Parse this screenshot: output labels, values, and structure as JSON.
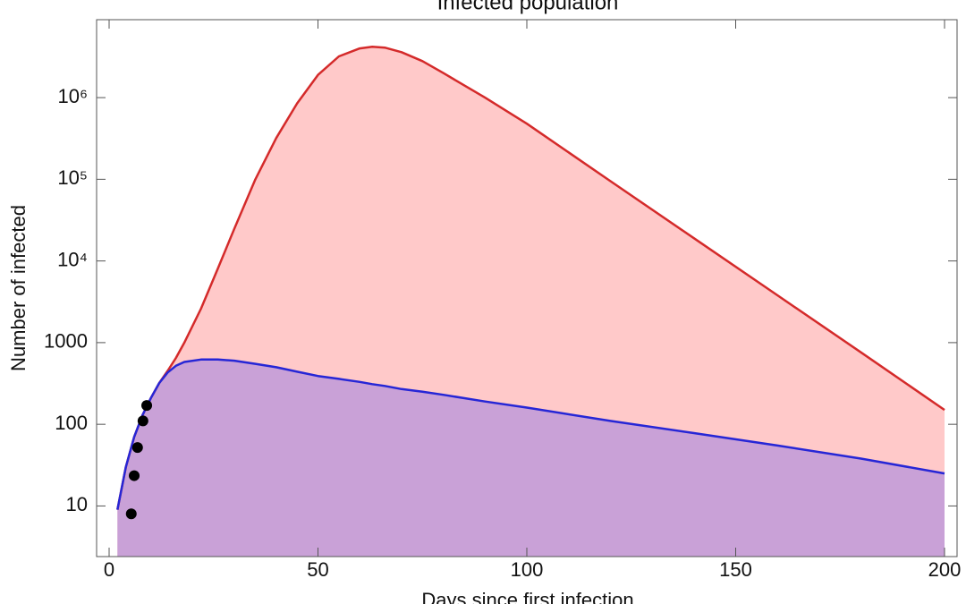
{
  "chart_data": {
    "type": "line",
    "title": "Infected population",
    "x_label": "Days since first infection",
    "y_label": "Number of infected",
    "ylog": true,
    "fill": true,
    "x": [
      2,
      4,
      6,
      8,
      10,
      12,
      14,
      16,
      18,
      22,
      26,
      30,
      35,
      40,
      45,
      50,
      55,
      60,
      63,
      66,
      70,
      75,
      80,
      90,
      100,
      120,
      140,
      160,
      180,
      200
    ],
    "series": [
      {
        "color": "#d42a2a",
        "fill_color": "#ffc9c9",
        "values": [
          9,
          30,
          70,
          130,
          210,
          320,
          450,
          650,
          1000,
          2600,
          8000,
          25000,
          100000,
          320000,
          850000,
          1900000,
          3200000,
          4000000,
          4200000,
          4100000,
          3600000,
          2800000,
          2000000,
          1000000,
          480000,
          95000,
          19000,
          3800,
          760,
          150
        ]
      },
      {
        "color": "#2626d6",
        "fill_color": "#c9a1d7",
        "values": [
          9,
          30,
          70,
          130,
          210,
          320,
          430,
          520,
          580,
          620,
          620,
          600,
          550,
          500,
          440,
          390,
          360,
          330,
          310,
          295,
          270,
          250,
          230,
          190,
          160,
          110,
          78,
          55,
          38,
          25
        ]
      }
    ],
    "points": {
      "color": "#000000",
      "x": [
        5.3,
        6,
        6.8,
        8.1,
        9
      ],
      "y": [
        8,
        23.5,
        52,
        110,
        170
      ]
    },
    "xlim": [
      -3,
      203
    ],
    "ylim": [
      2.4,
      9000000
    ],
    "xticks": [
      0,
      50,
      100,
      150,
      200
    ],
    "yticks": [
      10,
      100,
      1000,
      {
        "value": 10000,
        "label": "10⁴"
      },
      {
        "value": 100000,
        "label": "10⁵"
      },
      {
        "value": 1000000,
        "label": "10⁶"
      }
    ]
  }
}
